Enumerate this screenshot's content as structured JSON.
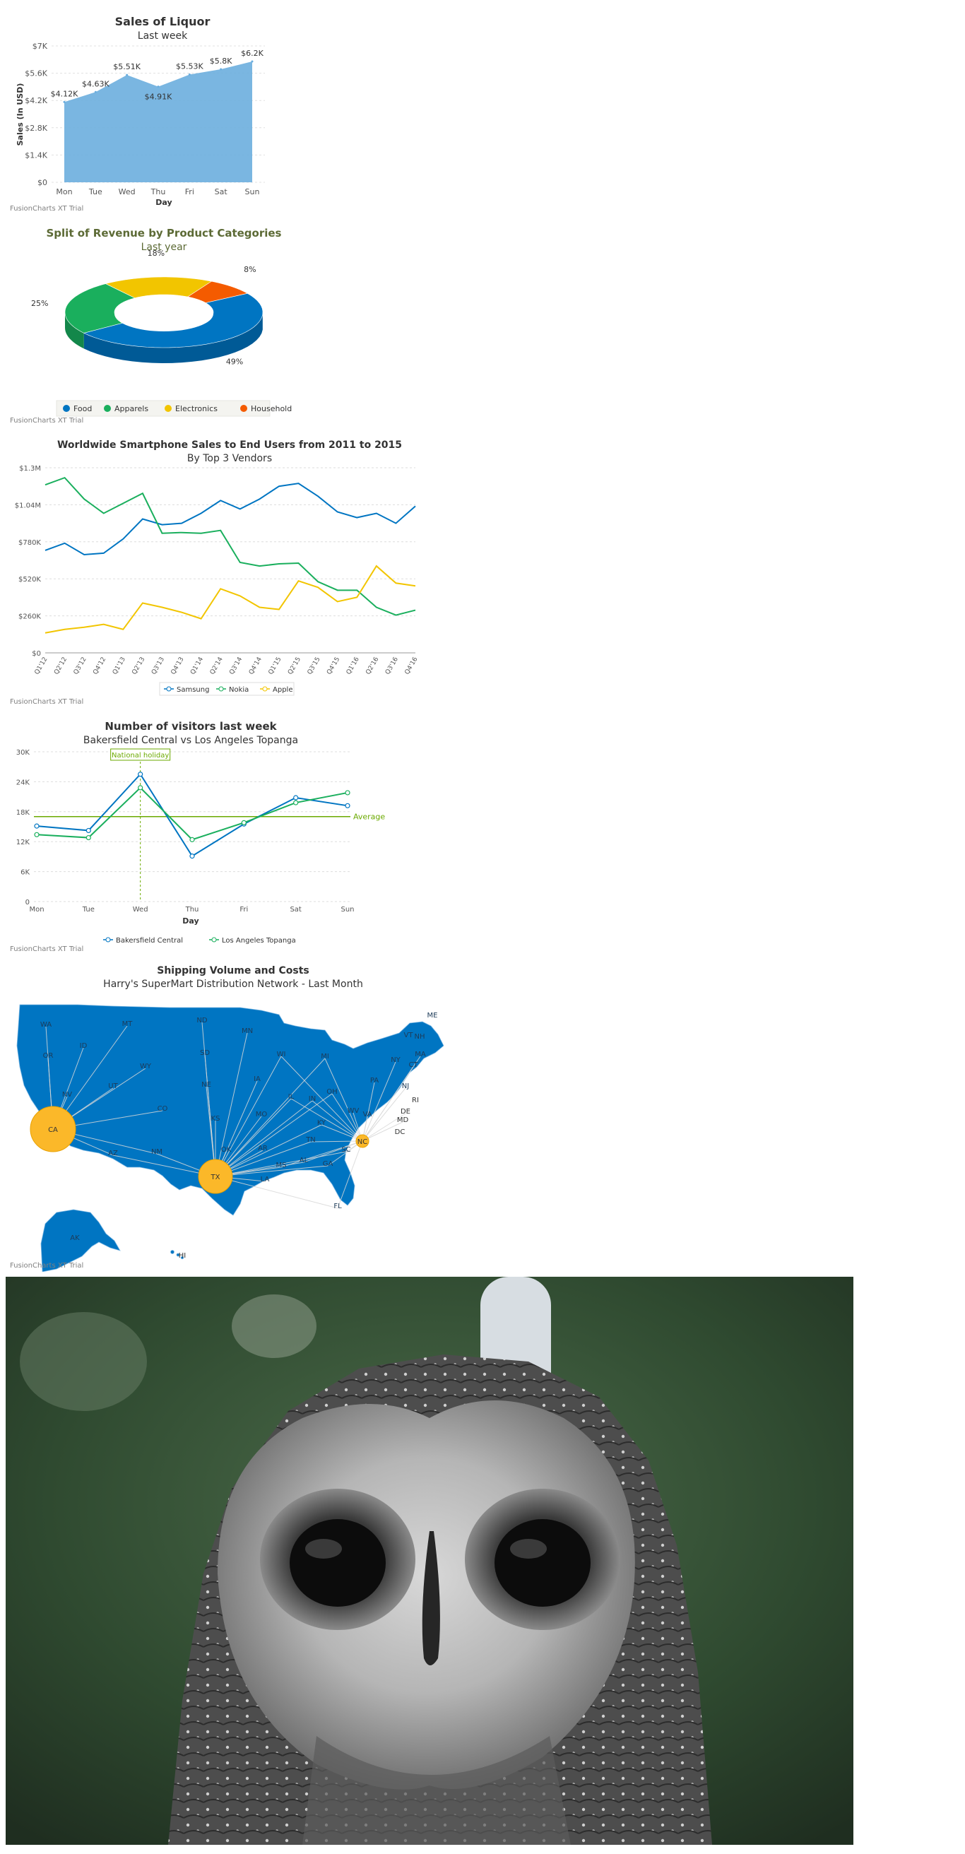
{
  "trial_label": "FusionCharts XT Trial",
  "colors": {
    "blue": "#0075c2",
    "green": "#1aaf5d",
    "yellow": "#f2c500",
    "orange": "#f45b00",
    "area": "#6baede",
    "mapBlue": "#0075c2",
    "bubble": "#fbb829",
    "average": "#6baa01"
  },
  "chart_data": [
    {
      "type": "area",
      "title": "Sales of Liquor",
      "subtitle": "Last week",
      "xlabel": "Day",
      "ylabel": "Sales (In USD)",
      "categories": [
        "Mon",
        "Tue",
        "Wed",
        "Thu",
        "Fri",
        "Sat",
        "Sun"
      ],
      "values": [
        4123,
        4633,
        5507,
        4910,
        5529,
        5803,
        6202
      ],
      "data_labels": [
        "$4.12K",
        "$4.63K",
        "$5.51K",
        "$4.91K",
        "$5.53K",
        "$5.8K",
        "$6.2K"
      ],
      "ylim": [
        0,
        7000
      ],
      "y_ticks": [
        "$0",
        "$1.4K",
        "$2.8K",
        "$4.2K",
        "$5.6K",
        "$7K"
      ],
      "grid": true
    },
    {
      "type": "pie",
      "title": "Split of Revenue by Product Categories",
      "subtitle": "Last year",
      "labels": [
        "Food",
        "Apparels",
        "Electronics",
        "Household"
      ],
      "values": [
        49,
        25,
        18,
        8
      ],
      "percent_labels": [
        "49%",
        "25%",
        "18%",
        "8%"
      ],
      "legend": "bottom"
    },
    {
      "type": "line",
      "title": "Worldwide Smartphone Sales to End Users from 2011 to 2015",
      "subtitle": "By Top 3 Vendors",
      "categories": [
        "Q1'12",
        "Q2'12",
        "Q3'12",
        "Q4'12",
        "Q1'13",
        "Q2'13",
        "Q3'13",
        "Q4'13",
        "Q1'14",
        "Q2'14",
        "Q3'14",
        "Q4'14",
        "Q1'15",
        "Q2'15",
        "Q3'15",
        "Q4'15",
        "Q1'16",
        "Q2'16",
        "Q3'16",
        "Q4'16"
      ],
      "series": [
        {
          "name": "Samsung",
          "values": [
            720,
            770,
            690,
            700,
            800,
            940,
            900,
            910,
            980,
            1070,
            1010,
            1080,
            1170,
            1190,
            1100,
            990,
            950,
            980,
            910,
            1030
          ]
        },
        {
          "name": "Nokia",
          "values": [
            1180,
            1230,
            1080,
            980,
            1050,
            1120,
            840,
            845,
            840,
            860,
            635,
            610,
            625,
            630,
            500,
            440,
            440,
            320,
            265,
            300
          ]
        },
        {
          "name": "Apple",
          "values": [
            140,
            165,
            180,
            200,
            165,
            350,
            320,
            285,
            240,
            450,
            400,
            320,
            305,
            505,
            460,
            360,
            390,
            610,
            490,
            470
          ]
        }
      ],
      "ylim": [
        0,
        1300
      ],
      "y_ticks": [
        "$0",
        "$260K",
        "$520K",
        "$780K",
        "$1.04M",
        "$1.3M"
      ],
      "legend": "bottom",
      "grid": true
    },
    {
      "type": "line",
      "title": "Number of visitors last week",
      "subtitle": "Bakersfield Central vs Los Angeles Topanga",
      "xlabel": "Day",
      "categories": [
        "Mon",
        "Tue",
        "Wed",
        "Thu",
        "Fri",
        "Sat",
        "Sun"
      ],
      "series": [
        {
          "name": "Bakersfield Central",
          "values": [
            15123,
            14233,
            25507,
            9110,
            15529,
            20803,
            19202
          ]
        },
        {
          "name": "Los Angeles Topanga",
          "values": [
            13400,
            12800,
            22800,
            12400,
            15800,
            19800,
            21800
          ]
        }
      ],
      "ylim": [
        0,
        30000
      ],
      "y_ticks": [
        "0",
        "6K",
        "12K",
        "18K",
        "24K",
        "30K"
      ],
      "trendline": {
        "value": 17022,
        "label": "Average"
      },
      "annotation": {
        "category": "Wed",
        "label": "National holiday"
      },
      "legend": "bottom",
      "grid": true
    },
    {
      "type": "map",
      "title": "Shipping Volume and Costs",
      "subtitle": "Harry's SuperMart Distribution Network - Last Month",
      "hubs": [
        "CA",
        "TX",
        "NC"
      ],
      "state_labels": [
        "WA",
        "OR",
        "ID",
        "MT",
        "WY",
        "NV",
        "UT",
        "CO",
        "AZ",
        "NM",
        "ND",
        "SD",
        "NE",
        "KS",
        "OK",
        "MN",
        "IA",
        "MO",
        "AR",
        "LA",
        "WI",
        "IL",
        "MI",
        "IN",
        "OH",
        "KY",
        "TN",
        "MS",
        "AL",
        "GA",
        "FL",
        "SC",
        "VA",
        "WV",
        "PA",
        "NY",
        "VT",
        "NH",
        "ME",
        "MA",
        "CT",
        "NJ",
        "RI",
        "DE",
        "MD",
        "DC",
        "AK",
        "HI"
      ]
    }
  ]
}
